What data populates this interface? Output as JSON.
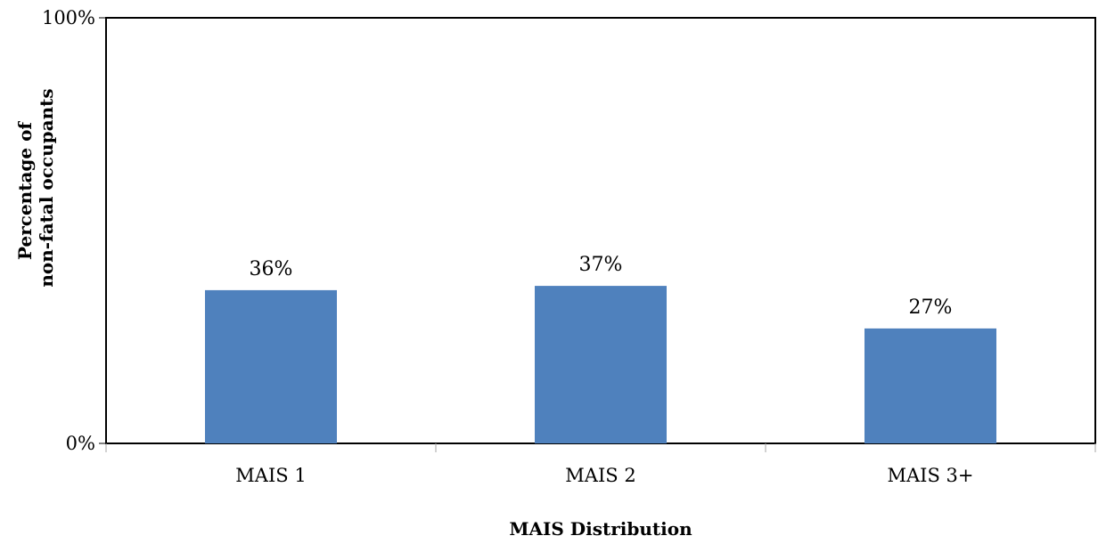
{
  "chart_data": {
    "type": "bar",
    "categories": [
      "MAIS 1",
      "MAIS 2",
      "MAIS 3+"
    ],
    "values": [
      36,
      37,
      27
    ],
    "data_labels": [
      "36%",
      "37%",
      "27%"
    ],
    "xlabel": "MAIS Distribution",
    "ylabel_lines": [
      "Percentage of",
      "non-fatal occupants"
    ],
    "ylim": [
      0,
      100
    ],
    "yticks": [
      {
        "value": 0,
        "label": "0%"
      },
      {
        "value": 100,
        "label": "100%"
      }
    ],
    "grid": false,
    "legend": "none",
    "colors": {
      "bar": "#4f81bd",
      "axis": "#000000",
      "tick": "#a6a6a6"
    }
  }
}
